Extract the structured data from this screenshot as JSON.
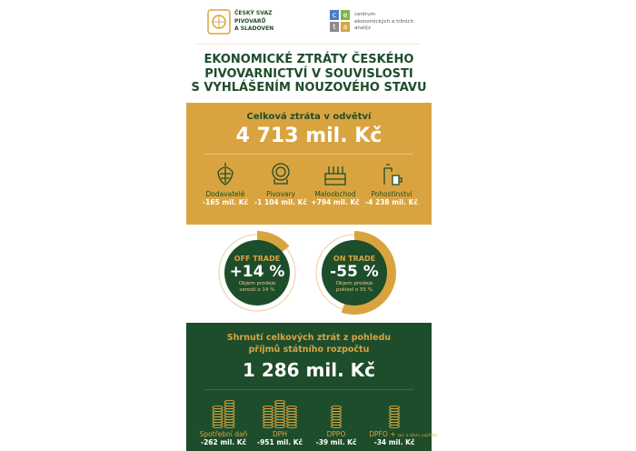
{
  "logos": {
    "cspas": "ČESKÝ SVAZ PIVOVARŮ A SLADOVEN",
    "cspas_lines": [
      "ČESKÝ SVAZ",
      "PIVOVARŮ",
      "A SLADOVEN"
    ],
    "ceta_letters": [
      "c",
      "e",
      "t",
      "a"
    ],
    "ceta_text": [
      "centrum",
      "ekonomických a tržních",
      "analýz"
    ]
  },
  "title": [
    "EKONOMICKÉ ZTRÁTY ČESKÉHO",
    "PIVOVARNICTVÍ V SOUVISLOSTI",
    "S VYHLÁŠENÍM NOUZOVÉHO STAVU"
  ],
  "total": {
    "heading": "Celková ztráta v odvětví",
    "value": "4 713 mil. Kč"
  },
  "categories": [
    {
      "icon": "hop-icon",
      "label": "Dodavatelé",
      "value": "-165 mil. Kč"
    },
    {
      "icon": "barrel-icon",
      "label": "Pivovary",
      "value": "-1 104 mil. Kč"
    },
    {
      "icon": "beer-crate-icon",
      "label": "Maloobchod",
      "value": "+794 mil. Kč"
    },
    {
      "icon": "beer-tap-icon",
      "label": "Pohostinství",
      "value": "-4 238 mil. Kč"
    }
  ],
  "trade": [
    {
      "label": "OFF TRADE",
      "value": "+14 %",
      "note": [
        "Objem prodeje",
        "vzrostl o 14 %"
      ],
      "fraction": 0.14
    },
    {
      "label": "ON TRADE",
      "value": "-55 %",
      "note": [
        "Objem prodeje",
        "poklesl o 55 %"
      ],
      "fraction": 0.55
    }
  ],
  "budget": {
    "heading": [
      "Shrnutí celkových ztrát z pohledu",
      "příjmů státního rozpočtu"
    ],
    "value": "1 286 mil. Kč",
    "items": [
      {
        "label": "Spotřební daň",
        "value": "-262 mil. Kč",
        "stacks": 2
      },
      {
        "label": "DPH",
        "value": "-951 mil. Kč",
        "stacks": 3
      },
      {
        "label": "DPPO",
        "value": "-39 mil. Kč",
        "stacks": 1
      },
      {
        "label": "DPFO +",
        "sub": "soc. a zdrav. pojištění",
        "value": "-34 mil. Kč",
        "stacks": 1
      }
    ]
  },
  "colors": {
    "gold": "#d9a43f",
    "green": "#1e4d2b",
    "ceta": [
      "#4a7fc1",
      "#7ab648",
      "#8a8a8a",
      "#d9a43f"
    ]
  }
}
